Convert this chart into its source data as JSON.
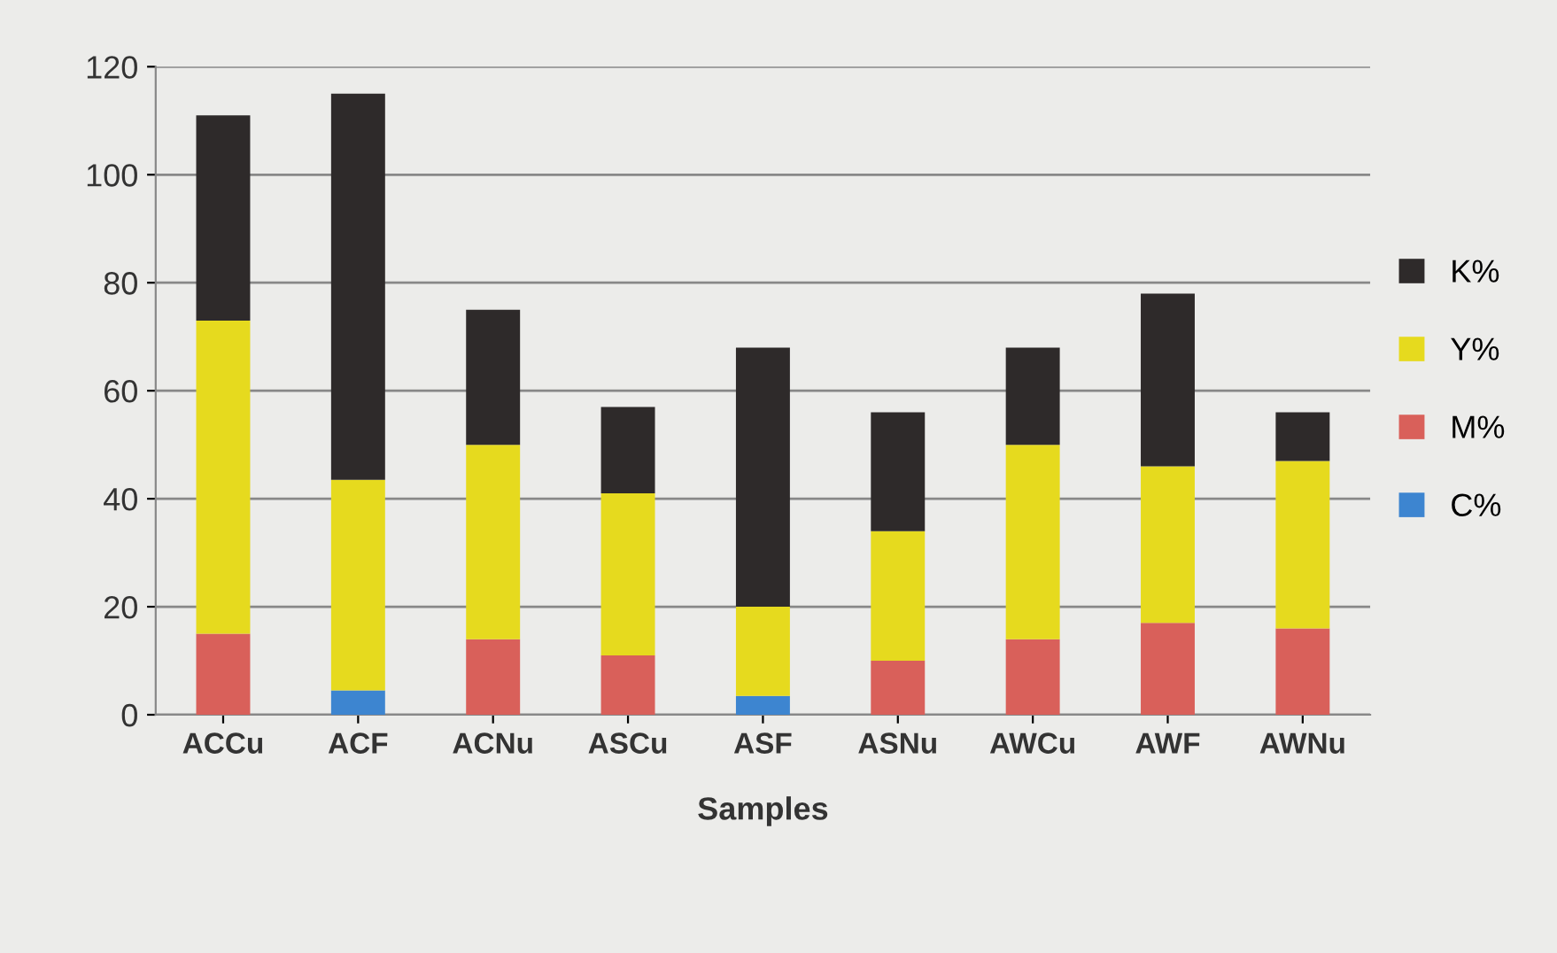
{
  "chart_data": {
    "type": "bar",
    "stacked": true,
    "xlabel": "Samples",
    "categories": [
      "ACCu",
      "ACF",
      "ACNu",
      "ASCu",
      "ASF",
      "ASNu",
      "AWCu",
      "AWF",
      "AWNu"
    ],
    "series": [
      {
        "name": "C%",
        "color": "#3d85d0",
        "values": [
          0,
          4.5,
          0,
          0,
          3.5,
          0,
          0,
          0,
          0
        ]
      },
      {
        "name": "M%",
        "color": "#d9605a",
        "values": [
          15,
          0,
          14,
          11,
          0,
          10,
          14,
          17,
          16
        ]
      },
      {
        "name": "Y%",
        "color": "#e6da1e",
        "values": [
          58,
          39,
          36,
          30,
          16.5,
          24,
          36,
          29,
          31
        ]
      },
      {
        "name": "K%",
        "color": "#2e2a2a",
        "values": [
          38,
          71.5,
          25,
          16,
          48,
          22,
          18,
          32,
          9
        ]
      }
    ],
    "ylim": [
      0,
      120
    ],
    "yticks": [
      0,
      20,
      40,
      60,
      80,
      100,
      120
    ],
    "grid": "y",
    "legend": "right"
  }
}
